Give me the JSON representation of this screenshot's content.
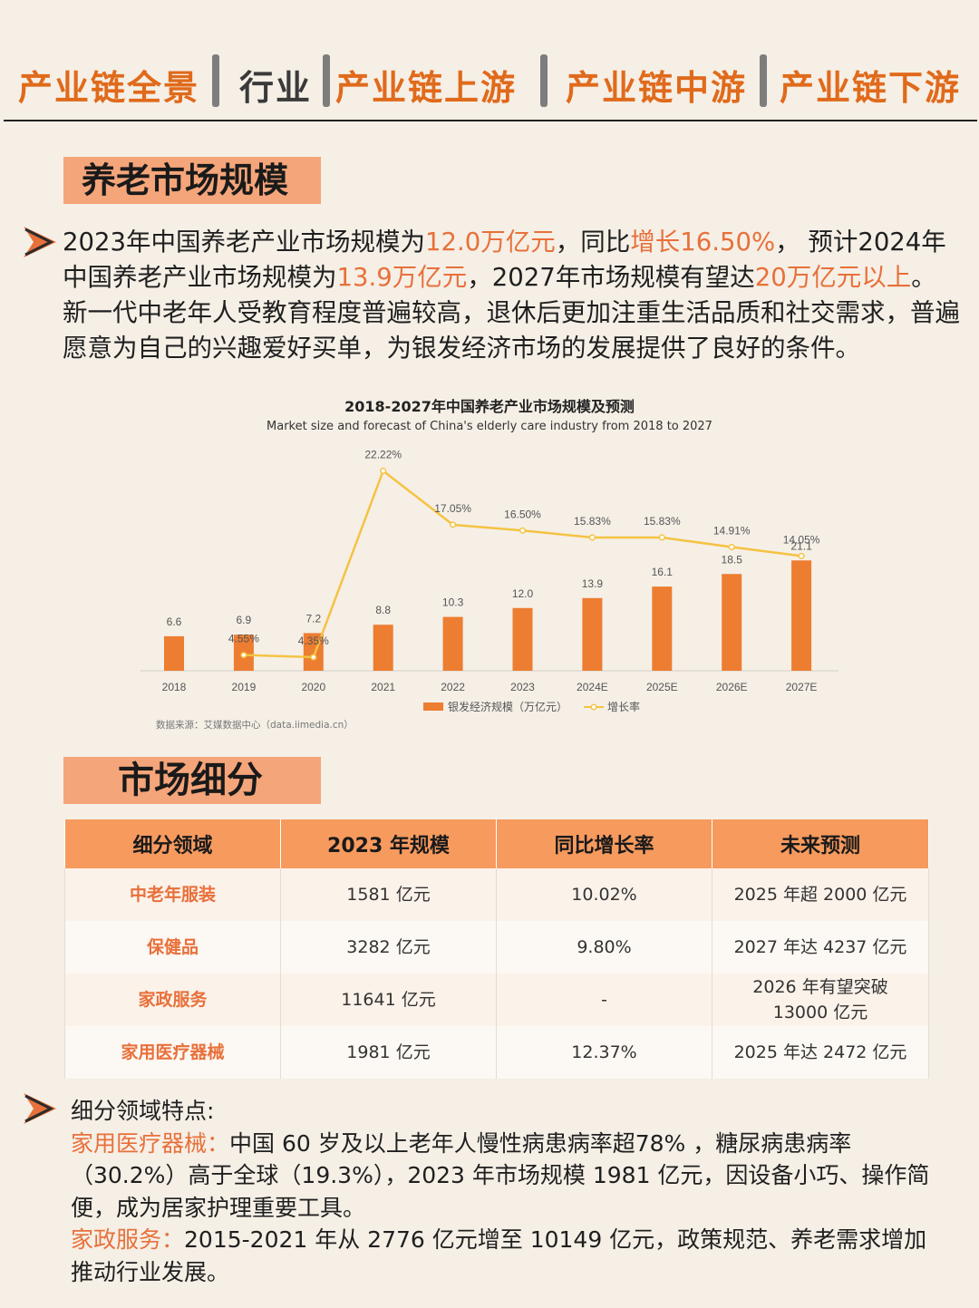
{
  "nav": {
    "tabs": [
      "产业链全景",
      "行业",
      "产业链上游",
      "产业链中游",
      "产业链下游"
    ]
  },
  "section1": {
    "title": "养老市场规模",
    "para": [
      {
        "t": "2023年中国养老产业市场规模为",
        "hl": false
      },
      {
        "t": "12.0万亿元",
        "hl": true
      },
      {
        "t": "，同比",
        "hl": false
      },
      {
        "t": "增长16.50%",
        "hl": true
      },
      {
        "t": "， 预计2024年中国养老产业市场规模为",
        "hl": false
      },
      {
        "t": "13.9万亿元",
        "hl": true
      },
      {
        "t": "，2027年市场规模有望达",
        "hl": false
      },
      {
        "t": "20万亿元以上",
        "hl": true
      },
      {
        "t": "。新一代中老年人受教育程度普遍较高，退休后更加注重生活品质和社交需求，普遍愿意为自己的兴趣爱好买单，为银发经济市场的发展提供了良好的条件。",
        "hl": false
      }
    ]
  },
  "chart_data": {
    "type": "bar",
    "title": "2018-2027年中国养老产业市场规模及预测",
    "subtitle": "Market size and forecast of China's elderly care industry from 2018 to 2027",
    "categories": [
      "2018",
      "2019",
      "2020",
      "2021",
      "2022",
      "2023",
      "2024E",
      "2025E",
      "2026E",
      "2027E"
    ],
    "series": [
      {
        "name": "银发经济规模（万亿元）",
        "type": "bar",
        "color": "#ed7d31",
        "values": [
          6.6,
          6.9,
          7.2,
          8.8,
          10.3,
          12.0,
          13.9,
          16.1,
          18.5,
          21.1
        ],
        "labels": [
          "6.6",
          "6.9",
          "7.2",
          "8.8",
          "10.3",
          "12.0",
          "13.9",
          "16.1",
          "18.5",
          "21.1"
        ]
      },
      {
        "name": "增长率",
        "type": "line",
        "color": "#f5c342",
        "values": [
          null,
          4.55,
          4.35,
          22.22,
          17.05,
          16.5,
          15.83,
          15.83,
          14.91,
          14.05
        ],
        "labels": [
          "",
          "4.55%",
          "4.35%",
          "22.22%",
          "17.05%",
          "16.50%",
          "15.83%",
          "15.83%",
          "14.91%",
          "14.05%"
        ]
      }
    ],
    "legend": "bottom",
    "grid": false,
    "source": "数据来源：艾媒数据中心（data.iimedia.cn）"
  },
  "section2": {
    "title": "市场细分",
    "table": {
      "headers": [
        "细分领域",
        "2023 年规模",
        "同比增长率",
        "未来预测"
      ],
      "rows": [
        [
          "中老年服装",
          "1581 亿元",
          "10.02%",
          "2025 年超 2000 亿元"
        ],
        [
          "保健品",
          "3282 亿元",
          "9.80%",
          "2027 年达 4237 亿元"
        ],
        [
          "家政服务",
          "11641 亿元",
          "-",
          "2026 年有望突破 13000 亿元"
        ],
        [
          "家用医疗器械",
          "1981 亿元",
          "12.37%",
          "2025 年达 2472 亿元"
        ]
      ]
    },
    "features": {
      "intro": "细分领域特点:",
      "item1_label": "家用医疗器械：",
      "item1_text": "中国 60 岁及以上老年人慢性病患病率超78% ，糖尿病患病率（30.2%）高于全球（19.3%），2023 年市场规模 1981 亿元，因设备小巧、操作简便，成为居家护理重要工具。",
      "item2_label": "家政服务：",
      "item2_text": "2015-2021 年从 2776 亿元增至 10149 亿元，政策规范、养老需求增加推动行业发展。"
    }
  },
  "colors": {
    "accent": "#e8703a",
    "bar": "#ed7d31",
    "line": "#f5c342",
    "tag_bg": "#f5a57a",
    "header_bg": "#f79a5e"
  }
}
